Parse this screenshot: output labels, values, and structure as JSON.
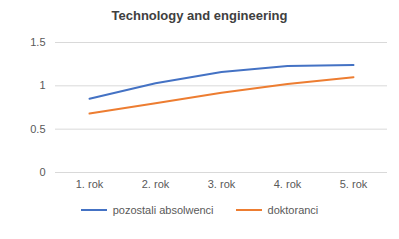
{
  "chart_data": {
    "type": "line",
    "title": "Technology and engineering",
    "categories": [
      "1. rok",
      "2. rok",
      "3. rok",
      "4. rok",
      "5. rok"
    ],
    "series": [
      {
        "name": "pozostali absolwenci",
        "color": "#4472c4",
        "values": [
          0.85,
          1.03,
          1.16,
          1.23,
          1.24
        ]
      },
      {
        "name": "doktoranci",
        "color": "#ed7d31",
        "values": [
          0.68,
          0.8,
          0.92,
          1.02,
          1.1
        ]
      }
    ],
    "ylim": [
      0,
      1.5
    ],
    "yticks": [
      0,
      0.5,
      1,
      1.5
    ],
    "grid": true,
    "legend": "bottom"
  }
}
